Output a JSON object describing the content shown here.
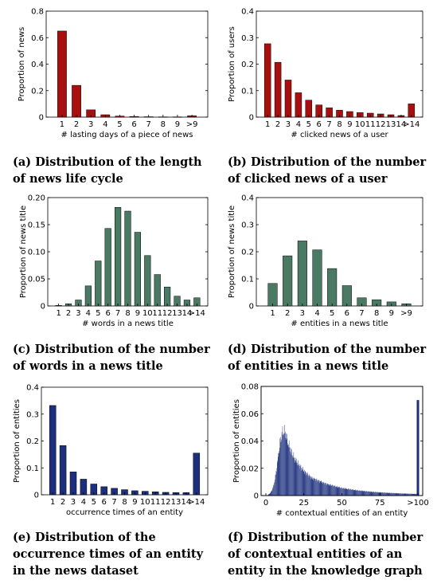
{
  "chart_data": [
    {
      "id": "a",
      "type": "bar",
      "categories": [
        "1",
        "2",
        "3",
        "4",
        "5",
        "6",
        "7",
        "8",
        "9",
        ">9"
      ],
      "values": [
        0.65,
        0.24,
        0.055,
        0.018,
        0.008,
        0.005,
        0.003,
        0.002,
        0.002,
        0.01
      ],
      "xlabel": "# lasting days of a piece of news",
      "ylabel": "Proportion of news",
      "ylim": [
        0,
        0.8
      ],
      "yticks": [
        0,
        0.2,
        0.4,
        0.6,
        0.8
      ],
      "ytick_labels": [
        "0",
        "0.2",
        "0.4",
        "0.6",
        "0.8"
      ],
      "color": "#a81010",
      "caption_label": "(a)",
      "caption": "Distribution of the length of news life cycle"
    },
    {
      "id": "b",
      "type": "bar",
      "categories": [
        "1",
        "2",
        "3",
        "4",
        "5",
        "6",
        "7",
        "8",
        "9",
        "10",
        "11",
        "12",
        "13",
        "14",
        ">14"
      ],
      "values": [
        0.277,
        0.207,
        0.14,
        0.092,
        0.064,
        0.046,
        0.035,
        0.026,
        0.021,
        0.017,
        0.015,
        0.012,
        0.009,
        0.006,
        0.05
      ],
      "xlabel": "# clicked news of a user",
      "ylabel": "Proportion of users",
      "ylim": [
        0,
        0.4
      ],
      "yticks": [
        0,
        0.1,
        0.2,
        0.3,
        0.4
      ],
      "ytick_labels": [
        "0",
        "0.1",
        "0.2",
        "0.3",
        "0.4"
      ],
      "color": "#a81010",
      "caption_label": "(b)",
      "caption": "Distribution of the number of clicked news of a user"
    },
    {
      "id": "c",
      "type": "bar",
      "categories": [
        "1",
        "2",
        "3",
        "4",
        "5",
        "6",
        "7",
        "8",
        "9",
        "10",
        "11",
        "12",
        "13",
        "14",
        ">14"
      ],
      "values": [
        0.001,
        0.004,
        0.011,
        0.037,
        0.083,
        0.143,
        0.182,
        0.175,
        0.136,
        0.093,
        0.058,
        0.035,
        0.018,
        0.011,
        0.015
      ],
      "xlabel": "# words in a news title",
      "ylabel": "Proportion of news title",
      "ylim": [
        0,
        0.2
      ],
      "yticks": [
        0,
        0.05,
        0.1,
        0.15,
        0.2
      ],
      "ytick_labels": [
        "0",
        "0.05",
        "0.10",
        "0.15",
        "0.20"
      ],
      "color": "#4a7a63",
      "caption_label": "(c)",
      "caption": "Distribution of the number of words in a news title"
    },
    {
      "id": "d",
      "type": "bar",
      "categories": [
        "1",
        "2",
        "3",
        "4",
        "5",
        "6",
        "7",
        "8",
        "9",
        ">9"
      ],
      "values": [
        0.083,
        0.185,
        0.24,
        0.207,
        0.138,
        0.075,
        0.03,
        0.023,
        0.015,
        0.008
      ],
      "xlabel": "# entities in a news title",
      "ylabel": "Proportion of news title",
      "ylim": [
        0,
        0.4
      ],
      "yticks": [
        0,
        0.1,
        0.2,
        0.3,
        0.4
      ],
      "ytick_labels": [
        "0",
        "0.1",
        "0.2",
        "0.3",
        "0.4"
      ],
      "color": "#4a7a63",
      "caption_label": "(d)",
      "caption": "Distribution of the number of entities in a news title"
    },
    {
      "id": "e",
      "type": "bar",
      "categories": [
        "1",
        "2",
        "3",
        "4",
        "5",
        "6",
        "7",
        "8",
        "9",
        "10",
        "11",
        "12",
        "13",
        "14",
        ">14"
      ],
      "values": [
        0.332,
        0.183,
        0.085,
        0.058,
        0.04,
        0.03,
        0.024,
        0.019,
        0.015,
        0.013,
        0.011,
        0.009,
        0.008,
        0.008,
        0.155
      ],
      "xlabel": "occurrence times of an entity",
      "ylabel": "Proportion of entities",
      "ylim": [
        0,
        0.4
      ],
      "yticks": [
        0,
        0.1,
        0.2,
        0.3,
        0.4
      ],
      "ytick_labels": [
        "0",
        "0.1",
        "0.2",
        "0.3",
        "0.4"
      ],
      "color": "#1c2f7d",
      "caption_label": "(e)",
      "caption": "Distribution of the occurrence times of an entity in the news dataset"
    },
    {
      "id": "f",
      "type": "bar",
      "x_range": [
        0,
        100
      ],
      "xticks": [
        0,
        25,
        50,
        75,
        100
      ],
      "xtick_labels": [
        "0",
        "25",
        "50",
        "75",
        ">100"
      ],
      "envelope": [
        [
          1,
          0
        ],
        [
          2,
          0.001
        ],
        [
          3,
          0.002
        ],
        [
          4,
          0.004
        ],
        [
          5,
          0.007
        ],
        [
          6,
          0.012
        ],
        [
          7,
          0.019
        ],
        [
          8,
          0.028
        ],
        [
          9,
          0.036
        ],
        [
          10,
          0.043
        ],
        [
          11,
          0.046
        ],
        [
          12,
          0.047
        ],
        [
          13,
          0.045
        ],
        [
          14,
          0.041
        ],
        [
          15,
          0.037
        ],
        [
          17,
          0.031
        ],
        [
          20,
          0.025
        ],
        [
          25,
          0.018
        ],
        [
          30,
          0.013
        ],
        [
          40,
          0.0085
        ],
        [
          50,
          0.0055
        ],
        [
          60,
          0.0038
        ],
        [
          70,
          0.0027
        ],
        [
          80,
          0.002
        ],
        [
          90,
          0.0015
        ],
        [
          99,
          0.0012
        ]
      ],
      "last_bar": {
        "x": 100,
        "y": 0.07
      },
      "xlabel": "# contextual entities of an entity",
      "ylabel": "Proportion of entities",
      "ylim": [
        0,
        0.08
      ],
      "yticks": [
        0,
        0.02,
        0.04,
        0.06,
        0.08
      ],
      "ytick_labels": [
        "0",
        "0.02",
        "0.04",
        "0.06",
        "0.08"
      ],
      "color": "#1c2f7d",
      "caption_label": "(f)",
      "caption": "Distribution of the number of contextual entities of an entity in the knowledge graph"
    }
  ]
}
